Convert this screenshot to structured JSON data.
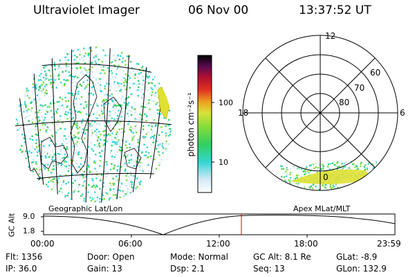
{
  "header": {
    "instrument": "Ultraviolet Imager",
    "date": "06 Nov 00",
    "time": "13:37:52 UT"
  },
  "colorbar": {
    "unit_label": "photon cm⁻²s⁻¹",
    "tick_labels": [
      "100",
      "10"
    ],
    "colors": [
      "#ffffff",
      "#cfe8f5",
      "#35d6d6",
      "#30d060",
      "#7ddc3a",
      "#d8e23a",
      "#f0a020",
      "#e03020",
      "#b01030",
      "#5a0a50",
      "#000000"
    ]
  },
  "polar_plot": {
    "mlt_labels": [
      "12",
      "18",
      "6",
      "0"
    ],
    "lat_labels": [
      "60",
      "70",
      "80"
    ]
  },
  "timeline": {
    "left_label": "Geographic Lat/Lon",
    "right_label": "Apex MLat/MLT",
    "y_axis_label": "GC Alt",
    "y_ticks": [
      "9.0",
      "1.8"
    ],
    "x_ticks": [
      "00:00",
      "06:00",
      "12:00",
      "18:00",
      "23:59"
    ],
    "current_time_marker_color": "#d00000"
  },
  "status": {
    "row1": {
      "flt": "Flt: 1356",
      "door": "Door: Open",
      "mode": "Mode: Normal",
      "gc_alt": "GC Alt: 8.1 Re",
      "glat": "GLat:  -8.9"
    },
    "row2": {
      "ip": "IP: 36.0",
      "gain": "Gain: 13",
      "dsp": "Dsp:    2.1",
      "seq": "Seq: 13",
      "glon": "GLon: 132.9"
    }
  }
}
